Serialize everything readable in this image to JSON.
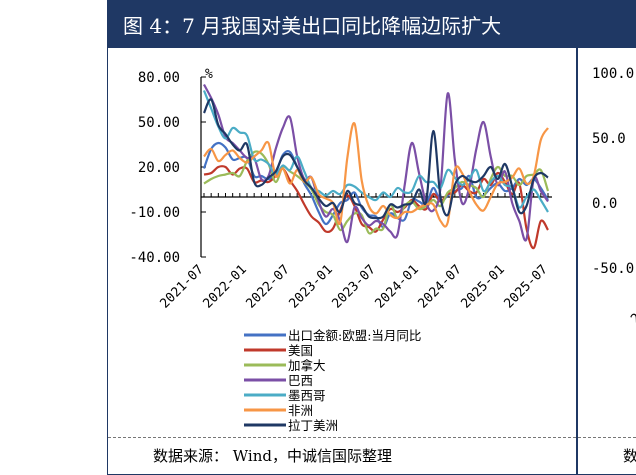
{
  "figure": {
    "title": "图 4：7 月我国对美出口同比降幅边际扩大",
    "source": "数据来源： Wind，中诚信国际整理"
  },
  "side_panel": {
    "tick_labels": [
      "100.0",
      "50.0",
      "0.0",
      "-50.0"
    ],
    "partial_tick": "20",
    "source_fragment": "数"
  },
  "chart_data": {
    "type": "line",
    "unit_label": "%",
    "ylim": [
      -40,
      80
    ],
    "y_ticks": [
      "80.00",
      "50.00",
      "20.00",
      "-10.00",
      "-40.00"
    ],
    "y_tick_values": [
      80,
      50,
      20,
      -10,
      -40
    ],
    "x_tick_labels": [
      "2021-07",
      "2022-01",
      "2022-07",
      "2023-01",
      "2023-07",
      "2024-01",
      "2024-07",
      "2025-01",
      "2025-07"
    ],
    "x": [
      "2021-07",
      "2021-08",
      "2021-09",
      "2021-10",
      "2021-11",
      "2021-12",
      "2022-01",
      "2022-02",
      "2022-03",
      "2022-04",
      "2022-05",
      "2022-06",
      "2022-07",
      "2022-08",
      "2022-09",
      "2022-10",
      "2022-11",
      "2022-12",
      "2023-01",
      "2023-02",
      "2023-03",
      "2023-04",
      "2023-05",
      "2023-06",
      "2023-07",
      "2023-08",
      "2023-09",
      "2023-10",
      "2023-11",
      "2023-12",
      "2024-01",
      "2024-02",
      "2024-03",
      "2024-04",
      "2024-05",
      "2024-06",
      "2024-07",
      "2024-08",
      "2024-09",
      "2024-10",
      "2024-11",
      "2024-12",
      "2025-01",
      "2025-02",
      "2025-03",
      "2025-04",
      "2025-05",
      "2025-06",
      "2025-07"
    ],
    "grid": false,
    "legend_position": "bottom",
    "series": [
      {
        "name": "出口金额:欧盟:当月同比",
        "color": "#4472c4",
        "values": [
          19,
          32,
          36,
          33,
          25,
          26,
          26,
          14,
          14,
          12,
          16,
          28,
          30,
          20,
          9,
          1,
          -10,
          -18,
          -12,
          -4,
          -2,
          3,
          -7,
          -12,
          -13,
          -20,
          -11,
          -14,
          -15,
          -2,
          -3,
          -5,
          6,
          -3,
          1,
          4,
          6,
          14,
          0,
          1,
          6,
          9,
          4,
          6,
          12,
          8,
          12,
          6,
          -2
        ]
      },
      {
        "name": "美国",
        "color": "#c0392b",
        "values": [
          15,
          16,
          20,
          20,
          15,
          19,
          19,
          10,
          11,
          10,
          14,
          19,
          11,
          4,
          -5,
          -13,
          -17,
          -23,
          -21,
          -9,
          1,
          -6,
          -18,
          -20,
          -23,
          -15,
          -8,
          -10,
          -7,
          -2,
          -6,
          -8,
          2,
          -3,
          2,
          3,
          8,
          4,
          3,
          12,
          8,
          16,
          10,
          2,
          9,
          -21,
          -34,
          -16,
          -22
        ]
      },
      {
        "name": "加拿大",
        "color": "#9bbb59",
        "values": [
          9,
          12,
          14,
          15,
          16,
          14,
          24,
          30,
          29,
          22,
          10,
          20,
          17,
          14,
          10,
          5,
          -5,
          -10,
          -12,
          -22,
          -16,
          -11,
          -12,
          -24,
          -21,
          -21,
          -5,
          -14,
          -6,
          -3,
          -8,
          -6,
          -2,
          -6,
          3,
          6,
          10,
          8,
          6,
          0,
          12,
          20,
          14,
          14,
          8,
          14,
          15,
          18,
          4
        ]
      },
      {
        "name": "巴西",
        "color": "#7b4fa6",
        "values": [
          75,
          66,
          55,
          40,
          36,
          31,
          26,
          26,
          12,
          14,
          32,
          46,
          53,
          27,
          12,
          13,
          -3,
          -13,
          -8,
          -16,
          -30,
          -7,
          -14,
          -19,
          -16,
          -18,
          -23,
          -25,
          8,
          36,
          16,
          -4,
          -9,
          6,
          69,
          25,
          -4,
          6,
          32,
          50,
          27,
          8,
          17,
          -4,
          -16,
          -28,
          12,
          4,
          -3
        ]
      },
      {
        "name": "墨西哥",
        "color": "#4bacc6",
        "values": [
          71,
          59,
          47,
          39,
          46,
          43,
          41,
          25,
          25,
          22,
          15,
          21,
          18,
          27,
          17,
          6,
          4,
          1,
          4,
          2,
          8,
          7,
          3,
          0,
          -2,
          3,
          0,
          6,
          3,
          4,
          14,
          10,
          10,
          6,
          18,
          13,
          8,
          12,
          18,
          4,
          10,
          14,
          8,
          6,
          -7,
          0,
          5,
          -2,
          -10
        ]
      },
      {
        "name": "非洲",
        "color": "#f79646",
        "values": [
          27,
          32,
          24,
          28,
          31,
          26,
          23,
          27,
          31,
          36,
          14,
          19,
          9,
          18,
          10,
          13,
          2,
          -1,
          -4,
          -17,
          26,
          49,
          11,
          -6,
          -11,
          -6,
          -12,
          -14,
          -10,
          -10,
          -7,
          -5,
          -5,
          -16,
          -17,
          18,
          16,
          4,
          -5,
          -9,
          0,
          9,
          10,
          13,
          19,
          9,
          14,
          38,
          46
        ]
      },
      {
        "name": "拉丁美洲",
        "color": "#1f3864",
        "values": [
          56,
          65,
          48,
          42,
          35,
          31,
          35,
          10,
          8,
          13,
          17,
          27,
          28,
          20,
          11,
          6,
          -1,
          -6,
          -4,
          -10,
          4,
          -4,
          -6,
          -13,
          -14,
          -13,
          -5,
          -7,
          -5,
          -4,
          5,
          -3,
          44,
          0,
          -12,
          8,
          14,
          11,
          10,
          14,
          20,
          12,
          22,
          7,
          -10,
          -6,
          12,
          16,
          13
        ]
      }
    ]
  }
}
